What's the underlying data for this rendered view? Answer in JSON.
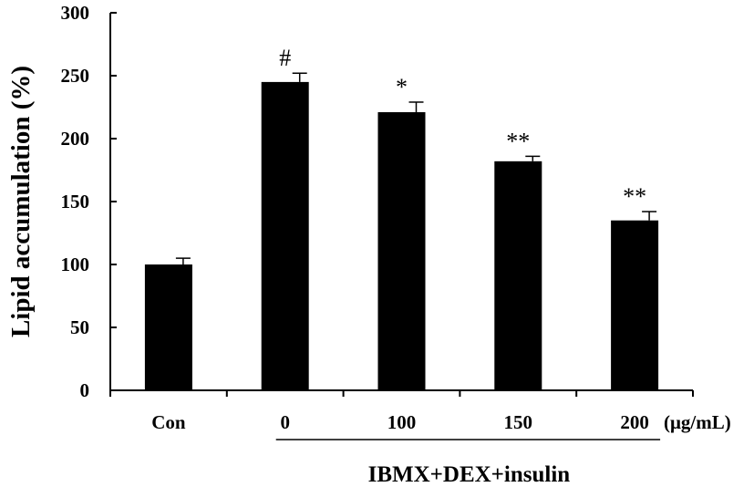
{
  "chart_data": {
    "type": "bar",
    "title": "",
    "ylabel": "Lipid accumulation (%)",
    "xlabel": "",
    "categories": [
      "Con",
      "0",
      "100",
      "150",
      "200"
    ],
    "values": [
      100,
      245,
      221,
      182,
      135
    ],
    "errors": [
      5,
      7,
      8,
      4,
      7
    ],
    "significance": [
      "",
      "#",
      "*",
      "**",
      "**"
    ],
    "ylim": [
      0,
      300
    ],
    "yticks": [
      0,
      50,
      100,
      150,
      200,
      250,
      300
    ],
    "x_unit": "(μg/mL)",
    "group_label": "IBMX+DEX+insulin",
    "grid": false,
    "bar_color": "#000000"
  }
}
